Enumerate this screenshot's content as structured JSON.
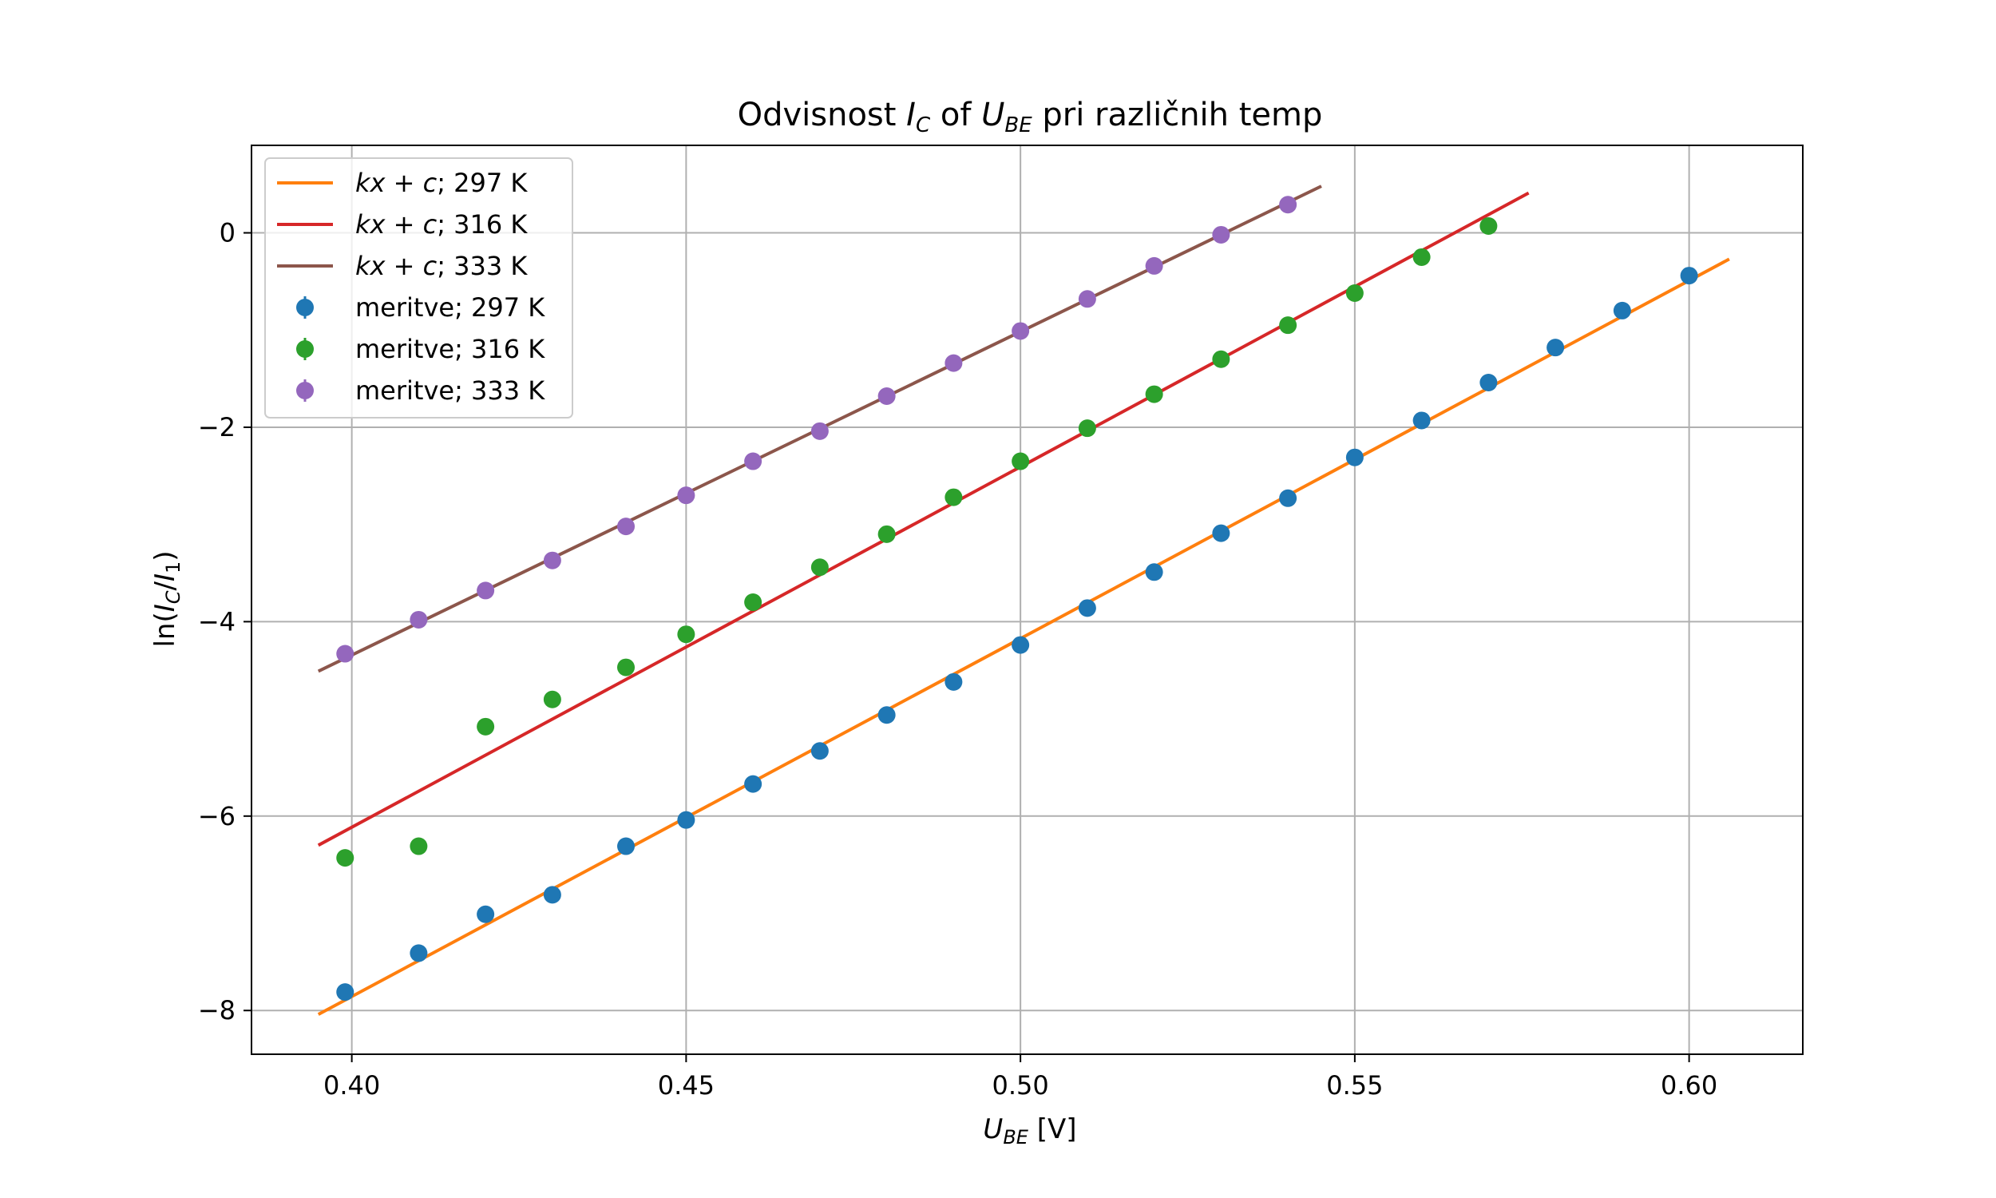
{
  "chart_data": {
    "type": "scatter",
    "title": {
      "pre": "Odvisnost ",
      "sym1": "I",
      "sub1": "C",
      "mid": " of ",
      "sym2": "U",
      "sub2": "BE",
      "post": " pri različnih temp"
    },
    "xlabel": {
      "sym": "U",
      "sub": "BE",
      "unit": " [V]"
    },
    "ylabel": {
      "text": "ln(I_C/I_1)"
    },
    "xlim": [
      0.385,
      0.617
    ],
    "ylim": [
      -8.45,
      0.9
    ],
    "xticks": [
      0.4,
      0.45,
      0.5,
      0.55,
      0.6
    ],
    "xtick_labels": [
      "0.40",
      "0.45",
      "0.50",
      "0.55",
      "0.60"
    ],
    "yticks": [
      -8,
      -6,
      -4,
      -2,
      0
    ],
    "ytick_labels": [
      "−8",
      "−6",
      "−4",
      "−2",
      "0"
    ],
    "grid": true,
    "legend_position": "top-left",
    "fits": [
      {
        "name": "kx + c; 297 K",
        "temp_label": "297 K",
        "color": "#ff7f0e",
        "x": [
          0.395,
          0.606
        ],
        "y": [
          -8.04,
          -0.27
        ]
      },
      {
        "name": "kx + c; 316 K",
        "temp_label": "316 K",
        "color": "#d62728",
        "x": [
          0.395,
          0.576
        ],
        "y": [
          -6.3,
          0.41
        ]
      },
      {
        "name": "kx + c; 333 K",
        "temp_label": "333 K",
        "color": "#8c564b",
        "x": [
          0.395,
          0.545
        ],
        "y": [
          -4.51,
          0.48
        ]
      }
    ],
    "series": [
      {
        "name": "meritve; 297 K",
        "color": "#1f77b4",
        "x": [
          0.399,
          0.41,
          0.42,
          0.43,
          0.441,
          0.45,
          0.46,
          0.47,
          0.48,
          0.49,
          0.5,
          0.51,
          0.52,
          0.53,
          0.54,
          0.55,
          0.56,
          0.57,
          0.58,
          0.59,
          0.6
        ],
        "y": [
          -7.81,
          -7.41,
          -7.01,
          -6.81,
          -6.31,
          -6.04,
          -5.67,
          -5.33,
          -4.96,
          -4.62,
          -4.24,
          -3.86,
          -3.49,
          -3.09,
          -2.73,
          -2.31,
          -1.93,
          -1.54,
          -1.18,
          -0.8,
          -0.44
        ]
      },
      {
        "name": "meritve; 316 K",
        "color": "#2ca02c",
        "x": [
          0.399,
          0.41,
          0.42,
          0.43,
          0.441,
          0.45,
          0.46,
          0.47,
          0.48,
          0.49,
          0.5,
          0.51,
          0.52,
          0.53,
          0.54,
          0.55,
          0.56,
          0.57
        ],
        "y": [
          -6.43,
          -6.31,
          -5.08,
          -4.8,
          -4.47,
          -4.13,
          -3.8,
          -3.44,
          -3.1,
          -2.72,
          -2.35,
          -2.01,
          -1.66,
          -1.3,
          -0.95,
          -0.62,
          -0.25,
          0.07
        ]
      },
      {
        "name": "meritve; 333 K",
        "color": "#9467bd",
        "x": [
          0.399,
          0.41,
          0.42,
          0.43,
          0.441,
          0.45,
          0.46,
          0.47,
          0.48,
          0.49,
          0.5,
          0.51,
          0.52,
          0.53,
          0.54
        ],
        "y": [
          -4.33,
          -3.98,
          -3.68,
          -3.37,
          -3.02,
          -2.7,
          -2.35,
          -2.04,
          -1.68,
          -1.34,
          -1.01,
          -0.68,
          -0.34,
          -0.02,
          0.29
        ]
      }
    ]
  }
}
